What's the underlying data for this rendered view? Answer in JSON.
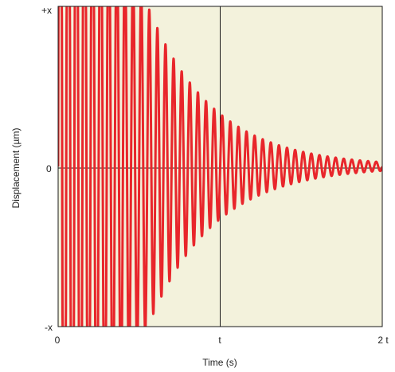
{
  "chart_data": {
    "type": "line",
    "title": "",
    "xlabel": "Time (s)",
    "ylabel": "Displacement (µm)",
    "x_ticks": [
      "0",
      "t",
      "2 t"
    ],
    "y_ticks": [
      "+x",
      "0",
      "-x"
    ],
    "xlim": [
      0,
      2
    ],
    "ylim": [
      -1,
      1
    ],
    "grid": {
      "vertical_at": [
        1
      ],
      "horizontal_at": [
        0
      ]
    },
    "colors": {
      "plot_background": "#f3f2dc",
      "series": "#e8262b",
      "frame": "#1a1a1a"
    },
    "series": [
      {
        "waveform": "damped oscillation, clipped at ±x",
        "amplitude_at_0": 4.0,
        "decay_rate": 2.5,
        "frequency": 20,
        "samples": 2000,
        "x_range": [
          0,
          2
        ]
      }
    ]
  }
}
